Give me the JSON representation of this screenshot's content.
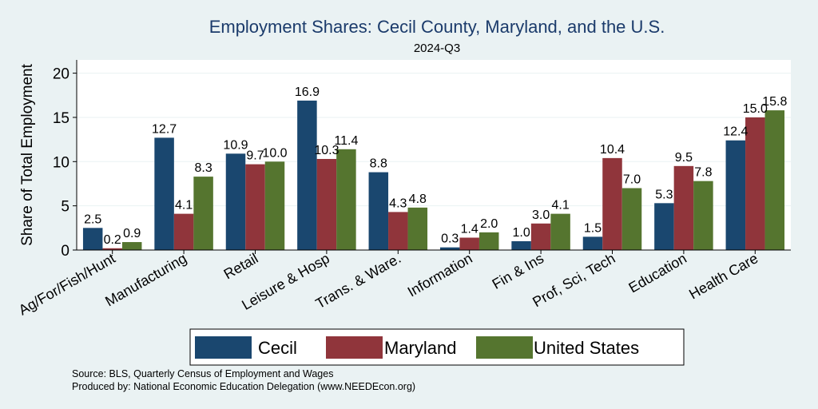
{
  "chart_data": {
    "type": "bar",
    "title": "Employment Shares: Cecil County, Maryland, and the U.S.",
    "subtitle": "2024-Q3",
    "ylabel": "Share of Total Employment",
    "xlabel": "",
    "ylim": [
      0,
      21.5
    ],
    "yticks": [
      "0",
      "5",
      "10",
      "15",
      "20"
    ],
    "ytick_values": [
      0,
      5,
      10,
      15,
      20
    ],
    "grid": true,
    "legend_position": "bottom",
    "categories": [
      "Ag/For/Fish/Hunt",
      "Manufacturing",
      "Retail",
      "Leisure & Hosp",
      "Trans. & Ware.",
      "Information",
      "Fin & Ins",
      "Prof, Sci, Tech",
      "Education",
      "Health Care"
    ],
    "series": [
      {
        "name": "Cecil",
        "color": "#1a476f",
        "values": [
          2.5,
          12.7,
          10.9,
          16.9,
          8.8,
          0.3,
          1.0,
          1.5,
          5.3,
          12.4
        ],
        "labels": [
          "2.5",
          "12.7",
          "10.9",
          "16.9",
          "8.8",
          "0.3",
          "1.0",
          "1.5",
          "5.3",
          "12.4"
        ]
      },
      {
        "name": "Maryland",
        "color": "#90353b",
        "values": [
          0.2,
          4.1,
          9.7,
          10.3,
          4.3,
          1.4,
          3.0,
          10.4,
          9.5,
          15.0
        ],
        "labels": [
          "0.2",
          "4.1",
          "9.7",
          "10.3",
          "4.3",
          "1.4",
          "3.0",
          "10.4",
          "9.5",
          "15.0"
        ]
      },
      {
        "name": "United States",
        "color": "#55752f",
        "values": [
          0.9,
          8.3,
          10.0,
          11.4,
          4.8,
          2.0,
          4.1,
          7.0,
          7.8,
          15.8
        ],
        "labels": [
          "0.9",
          "8.3",
          "10.0",
          "11.4",
          "4.8",
          "2.0",
          "4.1",
          "7.0",
          "7.8",
          "15.8"
        ]
      }
    ]
  },
  "notes": {
    "source": "Source: BLS, Quarterly Census of Employment and Wages",
    "produced": "Produced by: National Economic Education Delegation (www.NEEDEcon.org)"
  }
}
